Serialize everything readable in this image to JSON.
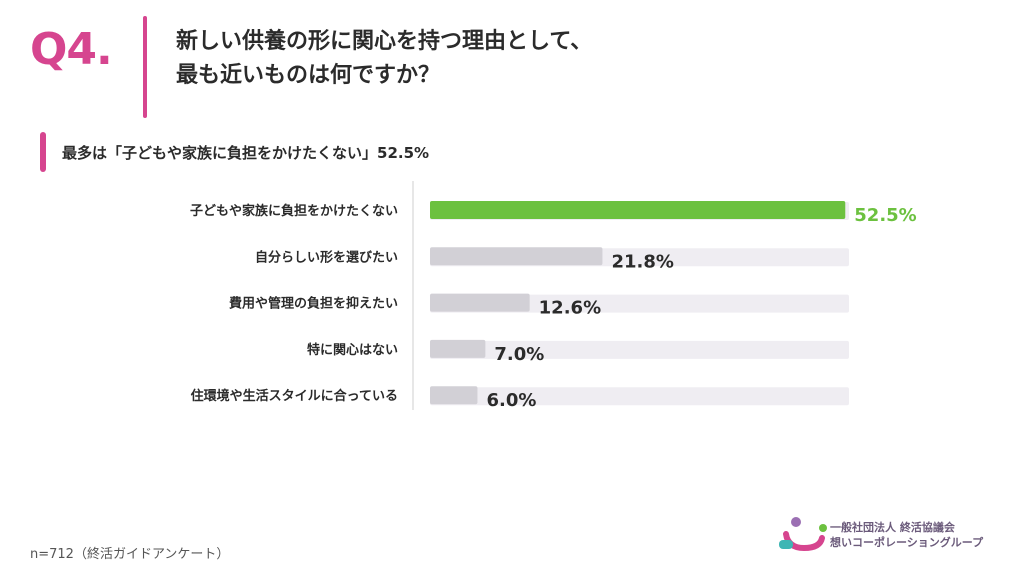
{
  "question": {
    "number": "Q4.",
    "title_line1": "新しい供養の形に関心を持つ理由として、",
    "title_line2": "最も近いものは何ですか？"
  },
  "summary": "最多は「子どもや家族に負担をかけたくない」52.5%",
  "colors": {
    "accent": "#d6458f",
    "highlight_bar": "#6cc13f",
    "bar": "#d2d0d6",
    "track": "#efedf2",
    "highlight_text": "#6cc13f"
  },
  "chart_data": {
    "type": "bar",
    "orientation": "horizontal",
    "categories": [
      "子どもや家族に負担をかけたくない",
      "自分らしい形を選びたい",
      "費用や管理の負担を抑えたい",
      "特に関心はない",
      "住環境や生活スタイルに合っている"
    ],
    "values": [
      52.5,
      21.8,
      12.6,
      7.0,
      6.0
    ],
    "value_labels": [
      "52.5%",
      "21.8%",
      "12.6%",
      "7.0%",
      "6.0%"
    ],
    "xlim": [
      0,
      100
    ],
    "highlight_index": 0,
    "grid": false,
    "legend": "none"
  },
  "footnote": "n=712（終活ガイドアンケート）",
  "logo": {
    "line1": "一般社団法人 終活協議会",
    "line2": "想いコーポレーショングループ"
  }
}
